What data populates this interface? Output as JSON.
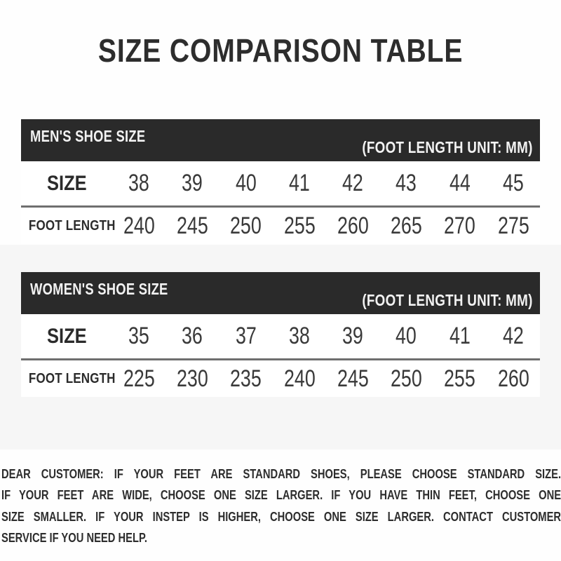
{
  "page": {
    "title": "SIZE COMPARISON TABLE"
  },
  "tables": [
    {
      "title": "MEN'S SHOE SIZE",
      "unit_note": "(FOOT LENGTH UNIT: MM)",
      "size_label": "SIZE",
      "foot_label": "FOOT LENGTH",
      "sizes": [
        "38",
        "39",
        "40",
        "41",
        "42",
        "43",
        "44",
        "45"
      ],
      "foot_lengths": [
        "240",
        "245",
        "250",
        "255",
        "260",
        "265",
        "270",
        "275"
      ]
    },
    {
      "title": "WOMEN'S SHOE SIZE",
      "unit_note": "(FOOT LENGTH UNIT: MM)",
      "size_label": "SIZE",
      "foot_label": "FOOT LENGTH",
      "sizes": [
        "35",
        "36",
        "37",
        "38",
        "39",
        "40",
        "41",
        "42"
      ],
      "foot_lengths": [
        "225",
        "230",
        "235",
        "240",
        "245",
        "250",
        "255",
        "260"
      ]
    }
  ],
  "note": {
    "lines": [
      "DEAR CUSTOMER: IF YOUR FEET ARE STANDARD SHOES, PLEASE CHOOSE STANDARD SIZE.",
      "IF YOUR FEET ARE WIDE, CHOOSE ONE SIZE LARGER. IF YOU HAVE THIN FEET, CHOOSE ONE",
      "SIZE SMALLER. IF YOUR INSTEP IS HIGHER, CHOOSE ONE SIZE LARGER. CONTACT CUSTOMER",
      "SERVICE IF YOU NEED HELP."
    ]
  },
  "colors": {
    "header_bg": "#2a2a2a",
    "header_text": "#f2f2f2",
    "title_text": "#2d2d2d",
    "number_text": "#3a3a3a",
    "divider": "#6f6f6f",
    "band_bg": "#f6f6f6"
  }
}
